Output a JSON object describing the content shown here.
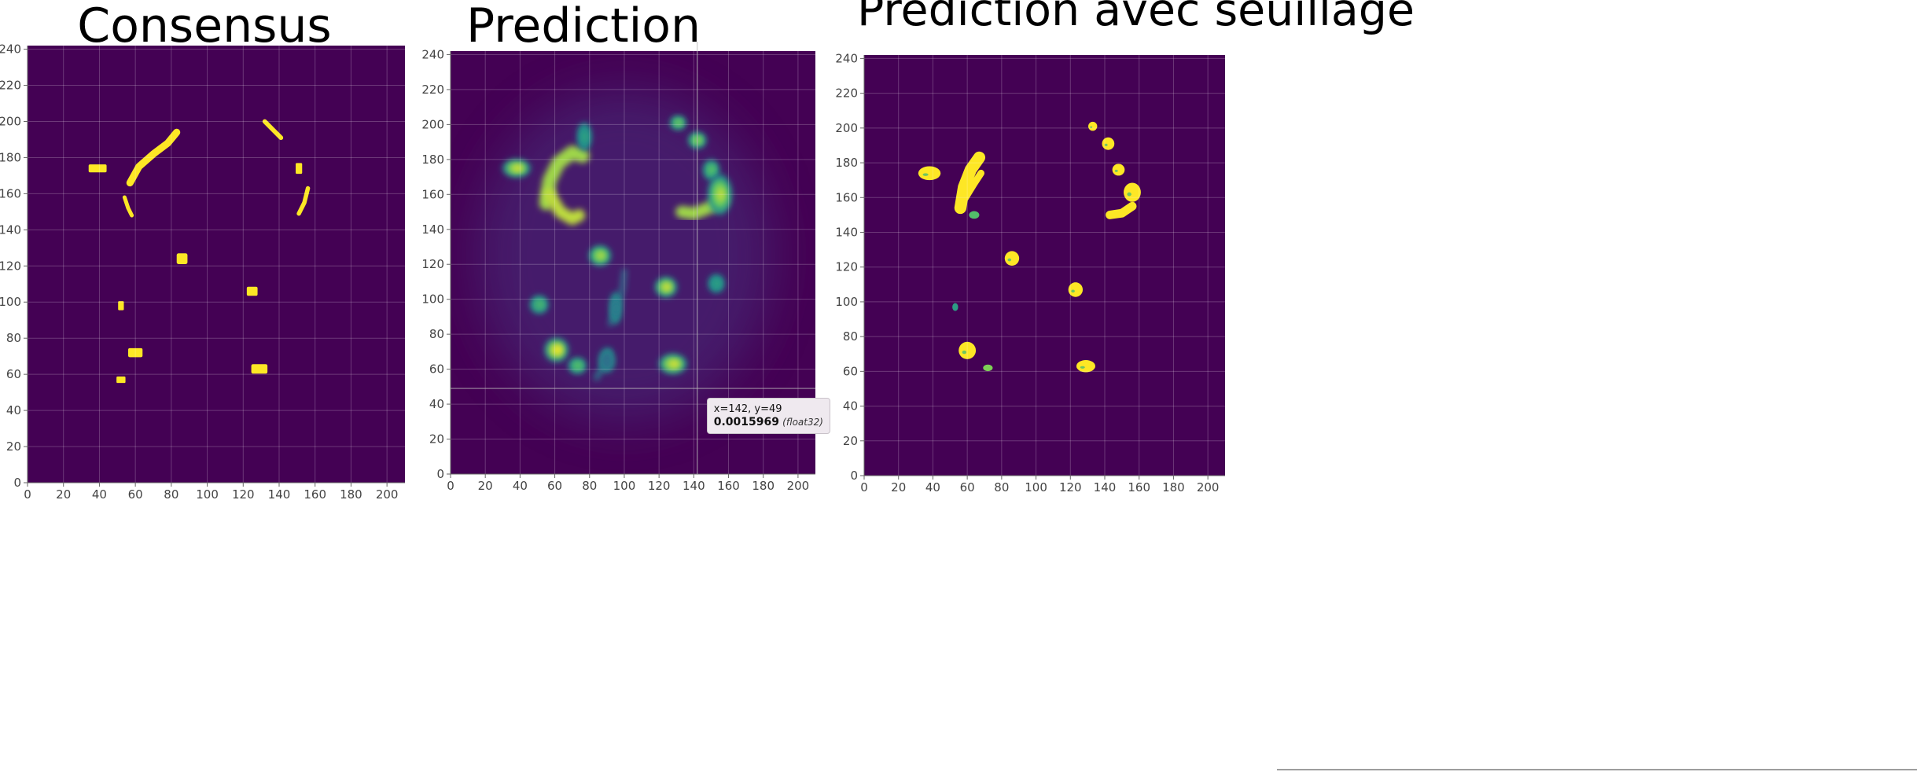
{
  "colors": {
    "background": "#440154",
    "foreground": "#fde725",
    "mid_green": "#35b779",
    "teal": "#21918c"
  },
  "axis": {
    "x_ticks": [
      "0",
      "20",
      "40",
      "60",
      "80",
      "100",
      "120",
      "140",
      "160",
      "180",
      "200"
    ],
    "y_ticks": [
      "0",
      "20",
      "40",
      "60",
      "80",
      "100",
      "120",
      "140",
      "160",
      "180",
      "200",
      "220",
      "240"
    ],
    "x_range": [
      0,
      210
    ],
    "y_range": [
      0,
      242
    ]
  },
  "panels": [
    {
      "title": "Consensus",
      "style": "binary",
      "blobs": [
        {
          "x": 39,
          "y": 174,
          "rx": 5,
          "ry": 2.2,
          "v": 1
        },
        {
          "x": 86,
          "y": 124,
          "rx": 3,
          "ry": 3,
          "v": 1
        },
        {
          "x": 52,
          "y": 98,
          "rx": 1.6,
          "ry": 2.5,
          "v": 1
        },
        {
          "x": 60,
          "y": 72,
          "rx": 4,
          "ry": 2.5,
          "v": 1
        },
        {
          "x": 52,
          "y": 57,
          "rx": 2.5,
          "ry": 1.8,
          "v": 1
        },
        {
          "x": 125,
          "y": 106,
          "rx": 3,
          "ry": 2.5,
          "v": 1
        },
        {
          "x": 129,
          "y": 63,
          "rx": 4.5,
          "ry": 2.6,
          "v": 1
        },
        {
          "x": 151,
          "y": 174,
          "rx": 1.8,
          "ry": 3,
          "v": 1
        }
      ],
      "strokes": [
        {
          "pts": [
            [
              57,
              166
            ],
            [
              62,
              175
            ],
            [
              70,
              182
            ],
            [
              78,
              188
            ],
            [
              83,
              194
            ]
          ],
          "w": 4,
          "v": 1
        },
        {
          "pts": [
            [
              54,
              158
            ],
            [
              56,
              152
            ],
            [
              58,
              148
            ]
          ],
          "w": 2.2,
          "v": 1
        },
        {
          "pts": [
            [
              132,
              200
            ],
            [
              137,
              195
            ],
            [
              141,
              191
            ]
          ],
          "w": 2.5,
          "v": 1
        },
        {
          "pts": [
            [
              156,
              163
            ],
            [
              154,
              155
            ],
            [
              151,
              149
            ]
          ],
          "w": 2.4,
          "v": 1
        }
      ],
      "tooltip": null
    },
    {
      "title": "Prediction",
      "style": "continuous",
      "blobs": [
        {
          "x": 38,
          "y": 175,
          "rx": 7,
          "ry": 4.5,
          "v": 0.95
        },
        {
          "x": 77,
          "y": 193,
          "rx": 3.5,
          "ry": 7,
          "v": 0.6
        },
        {
          "x": 131,
          "y": 201,
          "rx": 4,
          "ry": 3.5,
          "v": 0.8
        },
        {
          "x": 142,
          "y": 191,
          "rx": 4.5,
          "ry": 4,
          "v": 0.85
        },
        {
          "x": 150,
          "y": 174,
          "rx": 4,
          "ry": 5,
          "v": 0.75
        },
        {
          "x": 155,
          "y": 160,
          "rx": 6,
          "ry": 10,
          "v": 0.9
        },
        {
          "x": 86,
          "y": 125,
          "rx": 5.5,
          "ry": 5,
          "v": 0.9
        },
        {
          "x": 51,
          "y": 97,
          "rx": 4.5,
          "ry": 4.5,
          "v": 0.7
        },
        {
          "x": 124,
          "y": 107,
          "rx": 5.5,
          "ry": 5,
          "v": 0.95
        },
        {
          "x": 153,
          "y": 109,
          "rx": 4,
          "ry": 4.5,
          "v": 0.6
        },
        {
          "x": 61,
          "y": 71,
          "rx": 6,
          "ry": 6,
          "v": 1
        },
        {
          "x": 73,
          "y": 62,
          "rx": 4.5,
          "ry": 4,
          "v": 0.75
        },
        {
          "x": 128,
          "y": 63,
          "rx": 7,
          "ry": 5,
          "v": 0.95
        },
        {
          "x": 95,
          "y": 95,
          "rx": 3,
          "ry": 8,
          "v": 0.45
        },
        {
          "x": 90,
          "y": 65,
          "rx": 4,
          "ry": 6,
          "v": 0.4
        }
      ],
      "strokes": [
        {
          "pts": [
            [
              55,
              155
            ],
            [
              57,
              168
            ],
            [
              62,
              178
            ],
            [
              70,
              184
            ],
            [
              76,
              182
            ]
          ],
          "w": 8,
          "v": 0.85
        },
        {
          "pts": [
            [
              57,
              160
            ],
            [
              63,
              150
            ],
            [
              70,
              146
            ],
            [
              74,
              148
            ]
          ],
          "w": 7,
          "v": 0.9
        },
        {
          "pts": [
            [
              133,
              150
            ],
            [
              140,
              149
            ],
            [
              148,
              152
            ],
            [
              156,
              156
            ]
          ],
          "w": 7,
          "v": 0.85
        },
        {
          "pts": [
            [
              92,
              86
            ],
            [
              96,
              96
            ],
            [
              99,
              106
            ],
            [
              100,
              116
            ]
          ],
          "w": 3,
          "v": 0.35
        },
        {
          "pts": [
            [
              84,
              55
            ],
            [
              88,
              62
            ],
            [
              91,
              70
            ]
          ],
          "w": 3,
          "v": 0.4
        }
      ],
      "tooltip": {
        "coords": "x=142, y=49",
        "value": "0.0015969",
        "dtype": "(float32)",
        "cursor": {
          "x": 142,
          "y": 49
        }
      }
    },
    {
      "title": "Prédiction avec seuillage",
      "style": "threshold",
      "blobs": [
        {
          "x": 38,
          "y": 174,
          "rx": 6.5,
          "ry": 4,
          "v": 1
        },
        {
          "x": 133,
          "y": 201,
          "rx": 2.6,
          "ry": 2.6,
          "v": 1
        },
        {
          "x": 142,
          "y": 191,
          "rx": 3.6,
          "ry": 3.6,
          "v": 1
        },
        {
          "x": 148,
          "y": 176,
          "rx": 3.6,
          "ry": 3.4,
          "v": 1
        },
        {
          "x": 156,
          "y": 163,
          "rx": 5,
          "ry": 5.5,
          "v": 1
        },
        {
          "x": 86,
          "y": 125,
          "rx": 4.2,
          "ry": 4.2,
          "v": 1
        },
        {
          "x": 123,
          "y": 107,
          "rx": 4.2,
          "ry": 4.2,
          "v": 1
        },
        {
          "x": 60,
          "y": 72,
          "rx": 5,
          "ry": 5,
          "v": 1
        },
        {
          "x": 129,
          "y": 63,
          "rx": 5.5,
          "ry": 3.5,
          "v": 1
        },
        {
          "x": 53,
          "y": 97,
          "rx": 1.7,
          "ry": 2.3,
          "v": 0.55
        },
        {
          "x": 72,
          "y": 62,
          "rx": 2.8,
          "ry": 1.9,
          "v": 0.8
        },
        {
          "x": 64,
          "y": 150,
          "rx": 3,
          "ry": 2.2,
          "v": 0.7
        }
      ],
      "strokes": [
        {
          "pts": [
            [
              56,
              154
            ],
            [
              58,
              166
            ],
            [
              62,
              176
            ],
            [
              67,
              183
            ]
          ],
          "w": 7,
          "v": 1
        },
        {
          "pts": [
            [
              59,
              160
            ],
            [
              64,
              168
            ],
            [
              68,
              174
            ]
          ],
          "w": 4,
          "v": 1
        },
        {
          "pts": [
            [
              143,
              150
            ],
            [
              150,
              151
            ],
            [
              156,
              155
            ]
          ],
          "w": 5,
          "v": 1
        }
      ],
      "tooltip": null
    }
  ]
}
